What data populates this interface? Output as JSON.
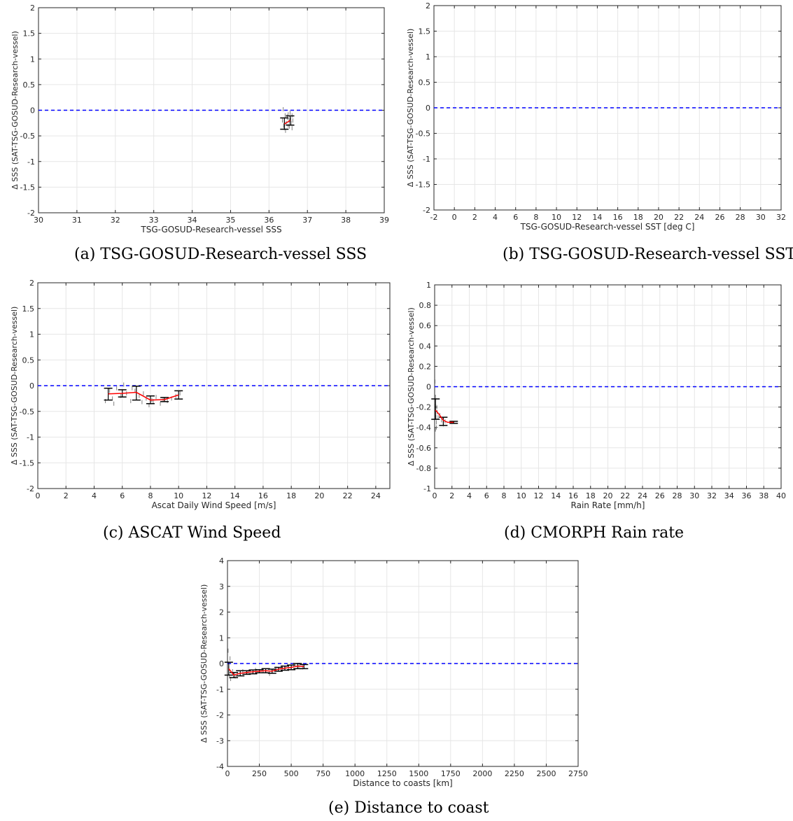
{
  "colors": {
    "zero_line": "#0000ff",
    "mean_line": "#ff0000",
    "errorbar": "#000000",
    "points": "#808080",
    "grid": "#e6e6e6"
  },
  "panels": [
    {
      "id": "a",
      "caption": "(a) TSG-GOSUD-Research-vessel SSS"
    },
    {
      "id": "b",
      "caption": "(b) TSG-GOSUD-Research-vessel SST"
    },
    {
      "id": "c",
      "caption": "(c) ASCAT Wind Speed"
    },
    {
      "id": "d",
      "caption": "(d) CMORPH Rain rate"
    },
    {
      "id": "e",
      "caption": "(e) Distance to coast"
    }
  ],
  "chart_data": [
    {
      "type": "line",
      "panel": "a",
      "xlabel": "TSG-GOSUD-Research-vessel SSS",
      "ylabel": "Δ SSS (SAT-TSG-GOSUD-Research-vessel)",
      "xlim": [
        30,
        39
      ],
      "ylim": [
        -2,
        2
      ],
      "grid": true,
      "xticks": [
        30,
        31,
        32,
        33,
        34,
        35,
        36,
        37,
        38,
        39
      ],
      "yticks": [
        -2,
        -1.5,
        -1,
        -0.5,
        0,
        0.5,
        1,
        1.5,
        2
      ],
      "reference_line": 0,
      "mean": {
        "x": [
          36.4,
          36.55
        ],
        "y": [
          -0.27,
          -0.2
        ]
      },
      "errorbars": [
        {
          "x": 36.4,
          "lo": -0.37,
          "hi": -0.15
        },
        {
          "x": 36.55,
          "lo": -0.29,
          "hi": -0.11
        }
      ],
      "scatter_x": [
        36.35,
        36.38,
        36.4,
        36.42,
        36.45,
        36.48,
        36.5,
        36.52,
        36.55,
        36.58,
        36.6,
        36.62,
        36.37,
        36.43,
        36.47,
        36.53,
        36.57,
        36.41,
        36.5,
        36.6
      ],
      "scatter_y": [
        -0.2,
        -0.3,
        -0.35,
        -0.1,
        -0.25,
        -0.15,
        -0.3,
        -0.2,
        -0.05,
        -0.25,
        -0.35,
        -0.2,
        0.02,
        -0.4,
        -0.12,
        -0.32,
        -0.18,
        -0.27,
        -0.08,
        -0.1
      ]
    },
    {
      "type": "line",
      "panel": "b",
      "xlabel": "TSG-GOSUD-Research-vessel SST [deg C]",
      "ylabel": "Δ SSS (SAT-TSG-GOSUD-Research-vessel)",
      "xlim": [
        -2,
        32
      ],
      "ylim": [
        -2,
        2
      ],
      "grid": true,
      "xticks": [
        -2,
        0,
        2,
        4,
        6,
        8,
        10,
        12,
        14,
        16,
        18,
        20,
        22,
        24,
        26,
        28,
        30,
        32
      ],
      "yticks": [
        -2,
        -1.5,
        -1,
        -0.5,
        0,
        0.5,
        1,
        1.5,
        2
      ],
      "reference_line": 0,
      "mean": {
        "x": [],
        "y": []
      },
      "errorbars": [],
      "scatter_x": [],
      "scatter_y": []
    },
    {
      "type": "line",
      "panel": "c",
      "xlabel": "Ascat Daily Wind Speed [m/s]",
      "ylabel": "Δ SSS (SAT-TSG-GOSUD-Research-vessel)",
      "xlim": [
        0,
        25
      ],
      "ylim": [
        -2,
        2
      ],
      "grid": true,
      "xticks": [
        0,
        2,
        4,
        6,
        8,
        10,
        12,
        14,
        16,
        18,
        20,
        22,
        24
      ],
      "yticks": [
        -2,
        -1.5,
        -1,
        -0.5,
        0,
        0.5,
        1,
        1.5,
        2
      ],
      "reference_line": 0,
      "mean": {
        "x": [
          5,
          6,
          7,
          8,
          9,
          10
        ],
        "y": [
          -0.16,
          -0.15,
          -0.13,
          -0.28,
          -0.27,
          -0.18
        ]
      },
      "errorbars": [
        {
          "x": 5,
          "lo": -0.28,
          "hi": -0.05
        },
        {
          "x": 6,
          "lo": -0.22,
          "hi": -0.08
        },
        {
          "x": 7,
          "lo": -0.28,
          "hi": -0.01
        },
        {
          "x": 8,
          "lo": -0.35,
          "hi": -0.2
        },
        {
          "x": 9,
          "lo": -0.31,
          "hi": -0.23
        },
        {
          "x": 10,
          "lo": -0.26,
          "hi": -0.1
        }
      ],
      "scatter_x": [
        4.8,
        5.1,
        5.3,
        5.6,
        5.9,
        6.1,
        6.3,
        6.6,
        6.9,
        7.2,
        7.4,
        7.7,
        7.9,
        8.2,
        8.4,
        8.7,
        8.9,
        9.2,
        9.5,
        9.8,
        10.1,
        5.4,
        6.7,
        7.5,
        8.1
      ],
      "scatter_y": [
        -0.3,
        -0.1,
        -0.25,
        -0.05,
        -0.2,
        0.02,
        -0.15,
        -0.3,
        -0.1,
        -0.2,
        -0.32,
        -0.25,
        -0.38,
        -0.3,
        -0.22,
        -0.35,
        -0.28,
        -0.3,
        -0.25,
        -0.2,
        -0.15,
        -0.35,
        -0.05,
        -0.15,
        -0.28
      ]
    },
    {
      "type": "line",
      "panel": "d",
      "xlabel": "Rain Rate [mm/h]",
      "ylabel": "Δ SSS (SAT-TSG-GOSUD-Research-vessel)",
      "xlim": [
        0,
        40
      ],
      "ylim": [
        -1,
        1
      ],
      "grid": true,
      "xticks": [
        0,
        2,
        4,
        6,
        8,
        10,
        12,
        14,
        16,
        18,
        20,
        22,
        24,
        26,
        28,
        30,
        32,
        34,
        36,
        38,
        40
      ],
      "yticks": [
        -1,
        -0.8,
        -0.6,
        -0.4,
        -0.2,
        0,
        0.2,
        0.4,
        0.6,
        0.8,
        1
      ],
      "reference_line": 0,
      "mean": {
        "x": [
          0.1,
          0.5,
          1,
          1.5,
          2.2
        ],
        "y": [
          -0.23,
          -0.27,
          -0.33,
          -0.35,
          -0.35
        ]
      },
      "errorbars": [
        {
          "x": 0.1,
          "lo": -0.32,
          "hi": -0.12
        },
        {
          "x": 1.0,
          "lo": -0.38,
          "hi": -0.3
        },
        {
          "x": 2.2,
          "lo": -0.36,
          "hi": -0.34
        }
      ],
      "scatter_x": [
        0.05,
        0.1,
        0.15,
        0.2,
        0.25,
        0.3,
        0.1,
        0.05,
        0.2,
        0.4,
        0.6,
        0.8,
        1.0,
        1.2
      ],
      "scatter_y": [
        0.05,
        -0.1,
        -0.3,
        -0.4,
        -0.2,
        -0.25,
        -0.42,
        -0.15,
        -0.35,
        -0.3,
        -0.28,
        -0.33,
        -0.37,
        -0.34
      ]
    },
    {
      "type": "line",
      "panel": "e",
      "xlabel": "Distance to coasts [km]",
      "ylabel": "Δ SSS (SAT-TSG-GOSUD-Research-vessel)",
      "xlim": [
        0,
        2750
      ],
      "ylim": [
        -4,
        4
      ],
      "grid": true,
      "xticks": [
        0,
        250,
        500,
        750,
        1000,
        1250,
        1500,
        1750,
        2000,
        2250,
        2500,
        2750
      ],
      "yticks": [
        -4,
        -3,
        -2,
        -1,
        0,
        1,
        2,
        3,
        4
      ],
      "reference_line": 0,
      "mean": {
        "x": [
          10,
          50,
          100,
          150,
          200,
          250,
          300,
          350,
          400,
          450,
          500,
          550,
          600
        ],
        "y": [
          -0.2,
          -0.45,
          -0.38,
          -0.35,
          -0.32,
          -0.3,
          -0.28,
          -0.3,
          -0.22,
          -0.18,
          -0.15,
          -0.1,
          -0.12
        ]
      },
      "errorbars": [
        {
          "x": 10,
          "lo": -0.45,
          "hi": 0.05
        },
        {
          "x": 50,
          "lo": -0.55,
          "hi": -0.35
        },
        {
          "x": 100,
          "lo": -0.48,
          "hi": -0.28
        },
        {
          "x": 150,
          "lo": -0.42,
          "hi": -0.28
        },
        {
          "x": 200,
          "lo": -0.4,
          "hi": -0.25
        },
        {
          "x": 250,
          "lo": -0.36,
          "hi": -0.24
        },
        {
          "x": 300,
          "lo": -0.36,
          "hi": -0.2
        },
        {
          "x": 350,
          "lo": -0.38,
          "hi": -0.22
        },
        {
          "x": 400,
          "lo": -0.3,
          "hi": -0.15
        },
        {
          "x": 450,
          "lo": -0.26,
          "hi": -0.1
        },
        {
          "x": 500,
          "lo": -0.24,
          "hi": -0.06
        },
        {
          "x": 550,
          "lo": -0.2,
          "hi": 0.0
        },
        {
          "x": 600,
          "lo": -0.2,
          "hi": -0.04
        }
      ],
      "scatter_x": [
        5,
        10,
        15,
        20,
        25,
        40,
        60,
        80,
        120,
        160,
        220,
        280,
        330,
        380,
        430,
        480,
        520,
        560,
        590
      ],
      "scatter_y": [
        0.5,
        -0.2,
        -0.5,
        0.2,
        -0.6,
        -0.3,
        -0.5,
        -0.4,
        -0.3,
        -0.35,
        -0.25,
        -0.3,
        -0.4,
        -0.2,
        -0.15,
        -0.2,
        -0.05,
        -0.1,
        -0.15
      ]
    }
  ]
}
